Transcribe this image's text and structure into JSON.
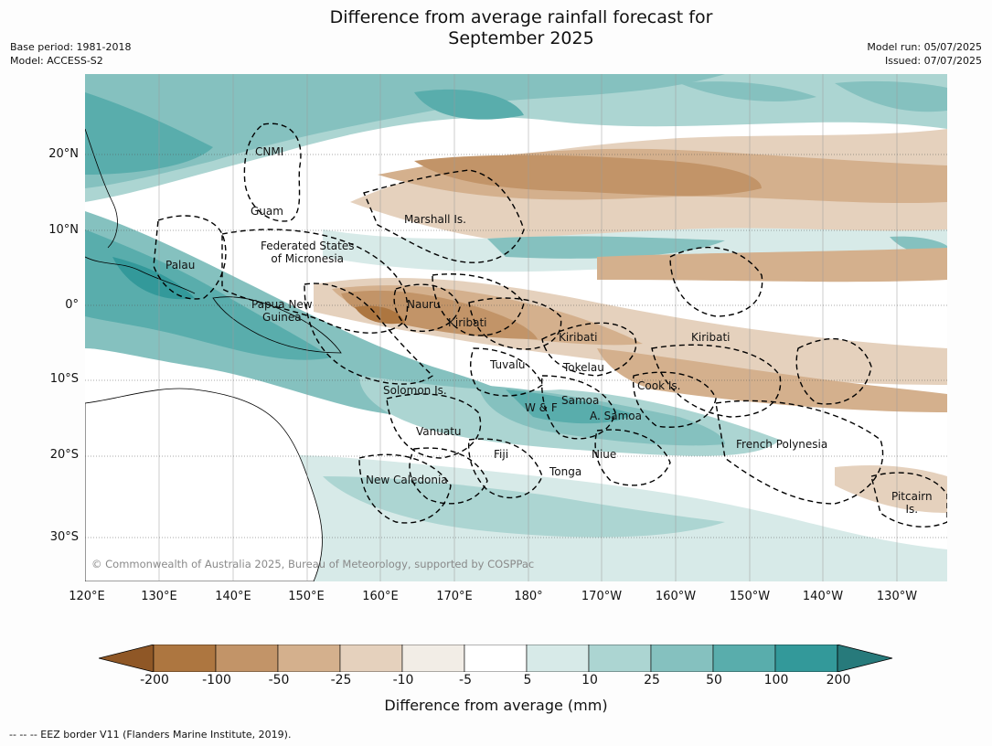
{
  "title_line1": "Difference from average rainfall forecast for",
  "title_line2": "September 2025",
  "meta_left": {
    "base_period": "Base period: 1981-2018",
    "model": "Model: ACCESS-S2"
  },
  "meta_right": {
    "model_run": "Model run: 05/07/2025",
    "issued": "Issued: 07/07/2025"
  },
  "lat_labels": [
    "20°N",
    "10°N",
    "0°",
    "10°S",
    "20°S",
    "30°S"
  ],
  "lon_labels": [
    "120°E",
    "130°E",
    "140°E",
    "150°E",
    "160°E",
    "170°E",
    "180°",
    "170°W",
    "160°W",
    "150°W",
    "140°W",
    "130°W"
  ],
  "regions": {
    "cnmi": "CNMI",
    "guam": "Guam",
    "marshall": "Marshall Is.",
    "fsm_line1": "Federated States",
    "fsm_line2": "of Micronesia",
    "palau": "Palau",
    "png_line1": "Papua New",
    "png_line2": "Guinea",
    "nauru": "Nauru",
    "kiribati_w": "Kiribati",
    "kiribati_c": "Kiribati",
    "kiribati_e": "Kiribati",
    "tuvalu": "Tuvalu",
    "tokelau": "Tokelau",
    "cook": "Cook Is.",
    "solomon": "Solomon Is.",
    "samoa": "Samoa",
    "wf": "W & F",
    "asamoa": "A. Samoa",
    "vanuatu": "Vanuatu",
    "fiji": "Fiji",
    "niue": "Niue",
    "tonga": "Tonga",
    "newcal": "New Caledonia",
    "frpoly": "French Polynesia",
    "pitcairn_line1": "Pitcairn",
    "pitcairn_line2": "Is."
  },
  "copyright": "© Commonwealth of Australia 2025, Bureau of Meteorology, supported by COSPPac",
  "colorbar": {
    "ticks": [
      "-200",
      "-100",
      "-50",
      "-25",
      "-10",
      "-5",
      "5",
      "10",
      "25",
      "50",
      "100",
      "200"
    ],
    "colors": [
      "#8f5726",
      "#ad7640",
      "#c29468",
      "#d4b08d",
      "#e5d1bd",
      "#f2ede6",
      "#ffffff",
      "#d7eae8",
      "#acd5d2",
      "#85c1bf",
      "#59adac",
      "#33999a",
      "#277a7b"
    ],
    "label": "Difference from average (mm)"
  },
  "footnote": "-- -- -- EEZ border V11 (Flanders Marine Institute, 2019)."
}
